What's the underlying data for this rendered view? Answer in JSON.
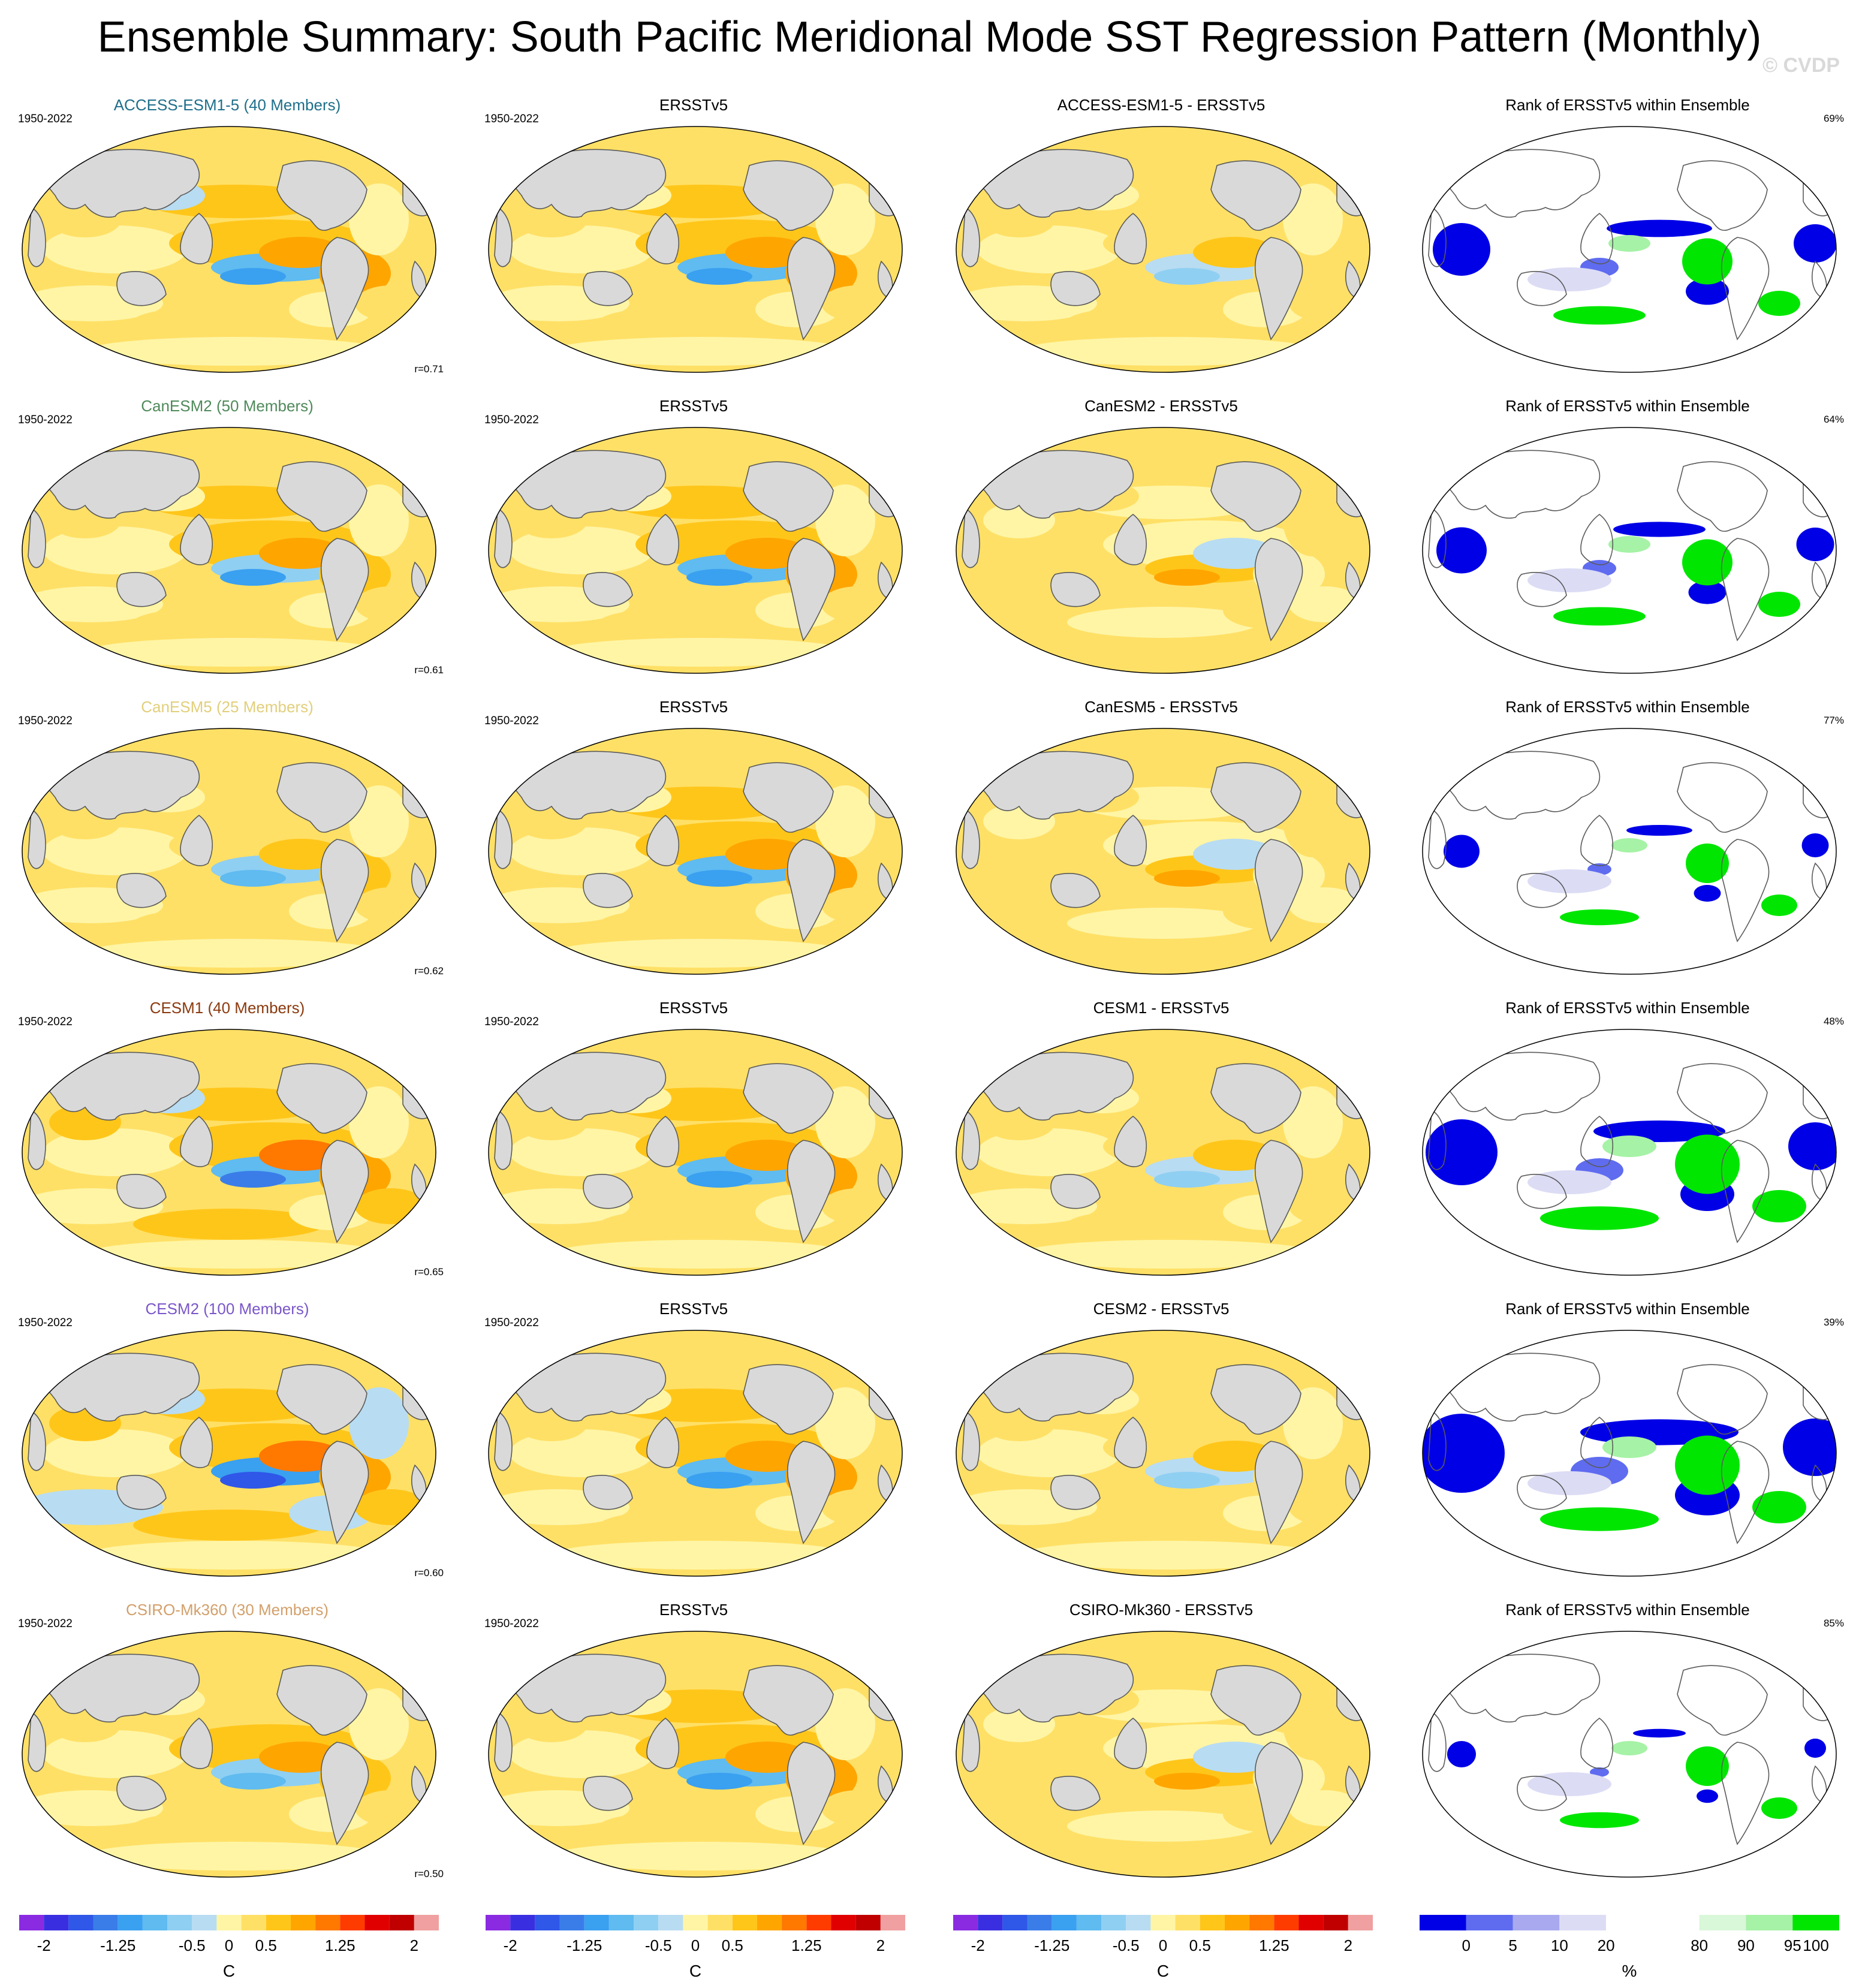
{
  "title": "Ensemble Summary: South Pacific Meridional Mode SST Regression Pattern (Monthly)",
  "watermark": "© CVDP",
  "colors": {
    "land": "#d9d9d9",
    "coast": "#5a5a5a",
    "temp_scale": [
      "#8a2be2",
      "#3a2fe0",
      "#2f57e8",
      "#3a7de8",
      "#3aa0f0",
      "#5fbbf0",
      "#8fcff2",
      "#b8dcf2",
      "#fff5a5",
      "#ffe066",
      "#ffc61a",
      "#ffa500",
      "#ff7800",
      "#ff3c00",
      "#e00000",
      "#c00000",
      "#f0a0a0"
    ],
    "rank_scale": [
      "#0000e6",
      "#5f6cf0",
      "#a9a9f0",
      "#dcdcf5",
      "#ffffff",
      "#ffffff",
      "#d9f7d9",
      "#a6f2a6",
      "#00e600"
    ]
  },
  "rows": [
    {
      "model": "ACCESS-ESM1-5 (40 Members)",
      "color": "#1f6f8b",
      "diff_title": "ACCESS-ESM1-5 - ERSSTv5",
      "r": "r=0.71",
      "rank_pct": "69%",
      "strength": 1.0,
      "diff_sign": 1,
      "rank_low": 0.8,
      "rank_high": 0.7
    },
    {
      "model": "CanESM2 (50 Members)",
      "color": "#4f8a5b",
      "diff_title": "CanESM2 - ERSSTv5",
      "r": "r=0.61",
      "rank_pct": "64%",
      "strength": 0.85,
      "diff_sign": -1,
      "rank_low": 0.7,
      "rank_high": 0.7
    },
    {
      "model": "CanESM5 (25 Members)",
      "color": "#e2cf7b",
      "diff_title": "CanESM5 - ERSSTv5",
      "r": "r=0.62",
      "rank_pct": "77%",
      "strength": 0.7,
      "diff_sign": -1,
      "rank_low": 0.5,
      "rank_high": 0.6
    },
    {
      "model": "CESM1 (40 Members)",
      "color": "#8b3a0e",
      "diff_title": "CESM1 - ERSSTv5",
      "r": "r=0.65",
      "rank_pct": "48%",
      "strength": 1.1,
      "diff_sign": 1,
      "rank_low": 1.0,
      "rank_high": 0.9
    },
    {
      "model": "CESM2 (100 Members)",
      "color": "#7a57c9",
      "diff_title": "CESM2 - ERSSTv5",
      "r": "r=0.60",
      "rank_pct": "39%",
      "strength": 1.3,
      "diff_sign": 1,
      "rank_low": 1.2,
      "rank_high": 0.9
    },
    {
      "model": "CSIRO-Mk360 (30 Members)",
      "color": "#d3a06b",
      "diff_title": "CSIRO-Mk360 - ERSSTv5",
      "r": "r=0.50",
      "rank_pct": "85%",
      "strength": 0.8,
      "diff_sign": -1,
      "rank_low": 0.4,
      "rank_high": 0.6
    }
  ],
  "obs_title": "ERSSTv5",
  "rank_title": "Rank of ERSSTv5 within Ensemble",
  "period": "1950-2022",
  "colorbars": {
    "temp": {
      "labels": [
        "-2",
        "-1.25",
        "-0.5",
        "0",
        "0.5",
        "1.25",
        "2"
      ],
      "unit": "C"
    },
    "rank": {
      "labels": [
        "0",
        "5",
        "10",
        "20",
        "80",
        "90",
        "95",
        "100"
      ],
      "unit": "%"
    }
  }
}
